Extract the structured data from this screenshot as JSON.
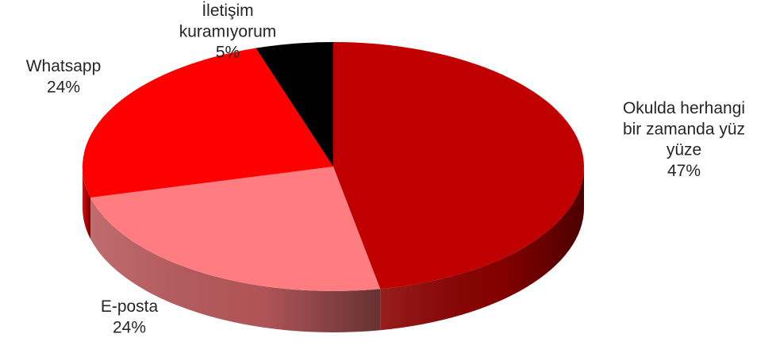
{
  "chart_data": {
    "type": "pie",
    "three_d": true,
    "start_angle_deg": 0,
    "direction": "clockwise",
    "slices": [
      {
        "label_lines": [
          "Okulda herhangi",
          "bir zamanda yüz",
          "yüze"
        ],
        "percent_label": "47%",
        "value": 47,
        "color": "#c00000"
      },
      {
        "label_lines": [
          "E-posta"
        ],
        "percent_label": "24%",
        "value": 24,
        "color": "#ff7c80"
      },
      {
        "label_lines": [
          "Whatsapp"
        ],
        "percent_label": "24%",
        "value": 24,
        "color": "#ff0000"
      },
      {
        "label_lines": [
          "İletişim",
          "kuramıyorum"
        ],
        "percent_label": "5%",
        "value": 5,
        "color": "#000000"
      }
    ]
  }
}
